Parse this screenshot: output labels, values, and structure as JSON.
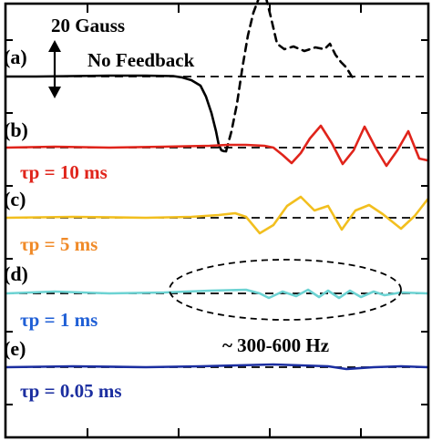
{
  "chart_data": {
    "type": "line",
    "title": "",
    "xlabel": "",
    "ylabel": "",
    "grid": false,
    "scale_bar": {
      "label": "20 Gauss"
    },
    "annotation": {
      "text": "~ 300-600 Hz"
    },
    "colors": {
      "a": "#000000",
      "b": "#e0241b",
      "c": "#f2bf1f",
      "d": "#6dd3d3",
      "e": "#1b2ea0",
      "tau_b": "#e0241b",
      "tau_c": "#f08a28",
      "tau_d": "#1f5fd6",
      "tau_e": "#1b2ea0"
    },
    "series": [
      {
        "panel": "(a)",
        "name": "No Feedback",
        "tau": "",
        "x": [
          0,
          40,
          80,
          120,
          160,
          190,
          200,
          210,
          220,
          226,
          232,
          237,
          240,
          243,
          246,
          248
        ],
        "y": [
          0,
          0,
          0.5,
          1,
          1,
          0.5,
          -1,
          -4,
          -10,
          -22,
          -40,
          -60,
          -75,
          -81,
          -82,
          -82
        ],
        "continuation": {
          "style": "dashed",
          "x": [
            248,
            254,
            260,
            266,
            272,
            278,
            284,
            288,
            292,
            297,
            304,
            312,
            322,
            334,
            346,
            356,
            362,
            368,
            374,
            380,
            386,
            390
          ],
          "y": [
            -82,
            -60,
            -30,
            10,
            45,
            70,
            86,
            90,
            86,
            66,
            36,
            30,
            33,
            28,
            32,
            30,
            36,
            24,
            16,
            10,
            0,
            -2
          ]
        }
      },
      {
        "panel": "(b)",
        "name": "",
        "tau": "τp = 10 ms",
        "x": [
          0,
          60,
          120,
          180,
          230,
          250,
          270,
          290,
          300,
          310,
          320,
          330,
          340,
          352,
          364,
          376,
          388,
          400,
          412,
          424,
          436,
          448,
          460,
          474
        ],
        "y": [
          0,
          1,
          0,
          1,
          2,
          3,
          3,
          2,
          0,
          -8,
          -17,
          -6,
          10,
          24,
          5,
          -18,
          -3,
          23,
          0,
          -20,
          -3,
          18,
          -12,
          -14
        ]
      },
      {
        "panel": "(c)",
        "name": "",
        "tau": "τp = 5 ms",
        "x": [
          0,
          80,
          160,
          210,
          240,
          258,
          270,
          285,
          300,
          315,
          330,
          345,
          360,
          375,
          390,
          405,
          420,
          440,
          455,
          474
        ],
        "y": [
          0,
          1,
          0,
          1,
          3,
          5,
          1,
          -17,
          -8,
          13,
          23,
          8,
          13,
          -13,
          8,
          14,
          4,
          -12,
          2,
          20
        ]
      },
      {
        "panel": "(d)",
        "name": "",
        "tau": "τp = 1 ms",
        "x": [
          0,
          60,
          120,
          180,
          230,
          270,
          285,
          295,
          310,
          325,
          338,
          350,
          360,
          372,
          384,
          396,
          410,
          422,
          440,
          474
        ],
        "y": [
          0,
          2,
          0,
          1,
          3,
          4,
          0,
          -5,
          2,
          -3,
          4,
          -4,
          3,
          -5,
          3,
          -4,
          2,
          -2,
          1,
          0
        ]
      },
      {
        "panel": "(e)",
        "name": "",
        "tau": "τp = 0.05 ms",
        "x": [
          0,
          80,
          160,
          220,
          260,
          300,
          330,
          360,
          380,
          410,
          440,
          474
        ],
        "y": [
          0,
          1,
          0,
          1,
          2,
          3,
          2,
          1,
          -2,
          0,
          1,
          0
        ]
      }
    ]
  }
}
